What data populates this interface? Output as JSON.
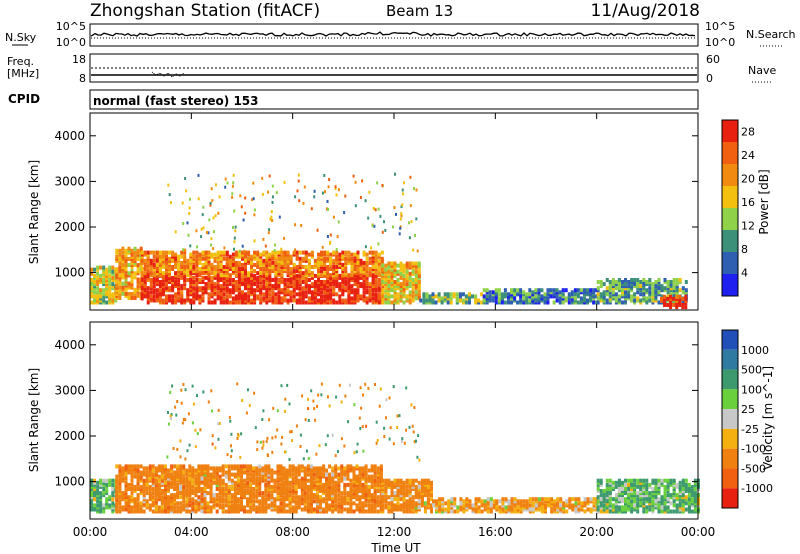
{
  "header": {
    "station": "Zhongshan Station (fitACF)",
    "beam": "Beam 13",
    "date": "11/Aug/2018"
  },
  "noise_panel": {
    "left_label": "N.Sky",
    "right_label": "N.Search",
    "left_ticks": [
      "10^5",
      "10^0"
    ],
    "right_ticks": [
      "10^5",
      "10^0"
    ]
  },
  "freq_panel": {
    "left_label_1": "Freq.",
    "left_label_2": "[MHz]",
    "right_label": "Nave",
    "left_ticks": [
      "18",
      "8"
    ],
    "right_ticks": [
      "60",
      "0"
    ]
  },
  "cpid": {
    "label": "CPID",
    "text": "normal (fast stereo) 153"
  },
  "time_axis": {
    "label": "Time UT",
    "ticks": [
      "00:00",
      "04:00",
      "08:00",
      "12:00",
      "16:00",
      "20:00",
      "00:00"
    ]
  },
  "colors": {
    "power_scale": [
      "#1f1ff0",
      "#2e5fb0",
      "#3c8f78",
      "#8fd24a",
      "#f4c010",
      "#f08a10",
      "#f06010",
      "#e82010"
    ],
    "velocity_scale": [
      "#2050b8",
      "#2f7aa0",
      "#3c9a6e",
      "#6ad03c",
      "#c8c8c8",
      "#f4b010",
      "#f08010",
      "#f06010",
      "#e82010"
    ]
  },
  "chart_data": [
    {
      "type": "heatmap",
      "title": "Power",
      "xlabel": "Time UT",
      "ylabel": "Slant Range [km]",
      "xlim": [
        "00:00",
        "24:00"
      ],
      "ylim": [
        180,
        4500
      ],
      "yticks": [
        1000,
        2000,
        3000,
        4000
      ],
      "colorbar": {
        "label": "Power [dB]",
        "ticks": [
          4,
          8,
          12,
          16,
          20,
          24,
          28
        ],
        "range": [
          0,
          30
        ]
      },
      "regions": [
        {
          "t_start": 0.0,
          "t_end": 1.0,
          "range_low": 300,
          "range_high": 1100,
          "value": 16
        },
        {
          "t_start": 1.0,
          "t_end": 2.0,
          "range_low": 400,
          "range_high": 1500,
          "value": 20
        },
        {
          "t_start": 2.0,
          "t_end": 11.5,
          "range_low": 300,
          "range_high": 900,
          "value": 28
        },
        {
          "t_start": 2.0,
          "t_end": 11.5,
          "range_low": 900,
          "range_high": 1400,
          "value": 22
        },
        {
          "t_start": 11.5,
          "t_end": 13.0,
          "range_low": 300,
          "range_high": 1200,
          "value": 18
        },
        {
          "t_start": 13.0,
          "t_end": 15.5,
          "range_low": 300,
          "range_high": 500,
          "value": 12
        },
        {
          "t_start": 15.5,
          "t_end": 20.0,
          "range_low": 300,
          "range_high": 600,
          "value": 8
        },
        {
          "t_start": 20.0,
          "t_end": 23.5,
          "range_low": 300,
          "range_high": 800,
          "value": 10
        },
        {
          "t_start": 22.5,
          "t_end": 23.5,
          "range_low": 200,
          "range_high": 450,
          "value": 28
        }
      ]
    },
    {
      "type": "heatmap",
      "title": "Velocity",
      "xlabel": "Time UT",
      "ylabel": "Slant Range [km]",
      "xlim": [
        "00:00",
        "24:00"
      ],
      "ylim": [
        180,
        4500
      ],
      "yticks": [
        1000,
        2000,
        3000,
        4000
      ],
      "colorbar": {
        "label": "Velocity [m s^-1]",
        "ticks": [
          1000,
          500,
          100,
          25,
          -25,
          -100,
          -500,
          -1000
        ]
      },
      "regions": [
        {
          "t_start": 0.0,
          "t_end": 1.0,
          "range_low": 300,
          "range_high": 1000,
          "value": 100
        },
        {
          "t_start": 1.0,
          "t_end": 11.5,
          "range_low": 300,
          "range_high": 1300,
          "value": -300
        },
        {
          "t_start": 11.5,
          "t_end": 13.5,
          "range_low": 300,
          "range_high": 1000,
          "value": -200
        },
        {
          "t_start": 13.5,
          "t_end": 16.0,
          "range_low": 300,
          "range_high": 600,
          "value": -100
        },
        {
          "t_start": 16.0,
          "t_end": 20.0,
          "range_low": 300,
          "range_high": 600,
          "value": -100
        },
        {
          "t_start": 20.0,
          "t_end": 24.0,
          "range_low": 300,
          "range_high": 1000,
          "value": 100
        }
      ]
    }
  ]
}
